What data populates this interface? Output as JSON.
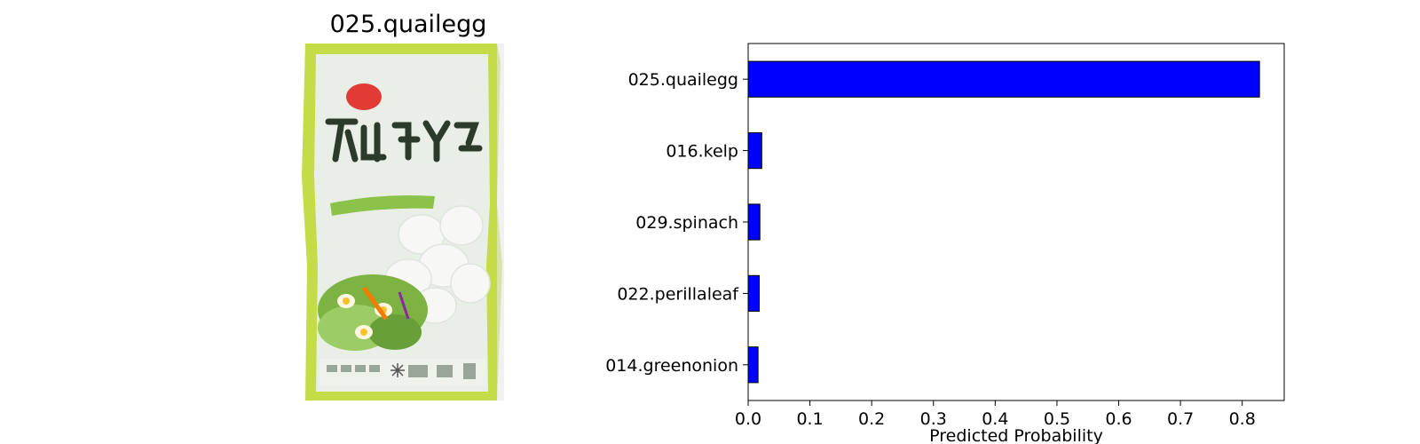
{
  "image_panel": {
    "title": "025.quailegg",
    "package_colors": {
      "background": "#c4dc48",
      "inner": "#eef3ee",
      "badge": "#e23b35",
      "text": "#2b3a2b",
      "leaf": "#6aa83a"
    }
  },
  "chart_data": {
    "type": "bar",
    "orientation": "horizontal",
    "categories": [
      "025.quailegg",
      "016.kelp",
      "029.spinach",
      "022.perillaleaf",
      "014.greenonion"
    ],
    "values": [
      0.828,
      0.022,
      0.019,
      0.018,
      0.016
    ],
    "xlabel": "Predicted Probability",
    "ylabel": "",
    "xlim": [
      0,
      0.868
    ],
    "xticks": [
      0.0,
      0.1,
      0.2,
      0.3,
      0.4,
      0.5,
      0.6,
      0.7,
      0.8
    ],
    "bar_color": "#0000ff",
    "edge_color": "#000000",
    "grid": false,
    "legend": "none"
  }
}
